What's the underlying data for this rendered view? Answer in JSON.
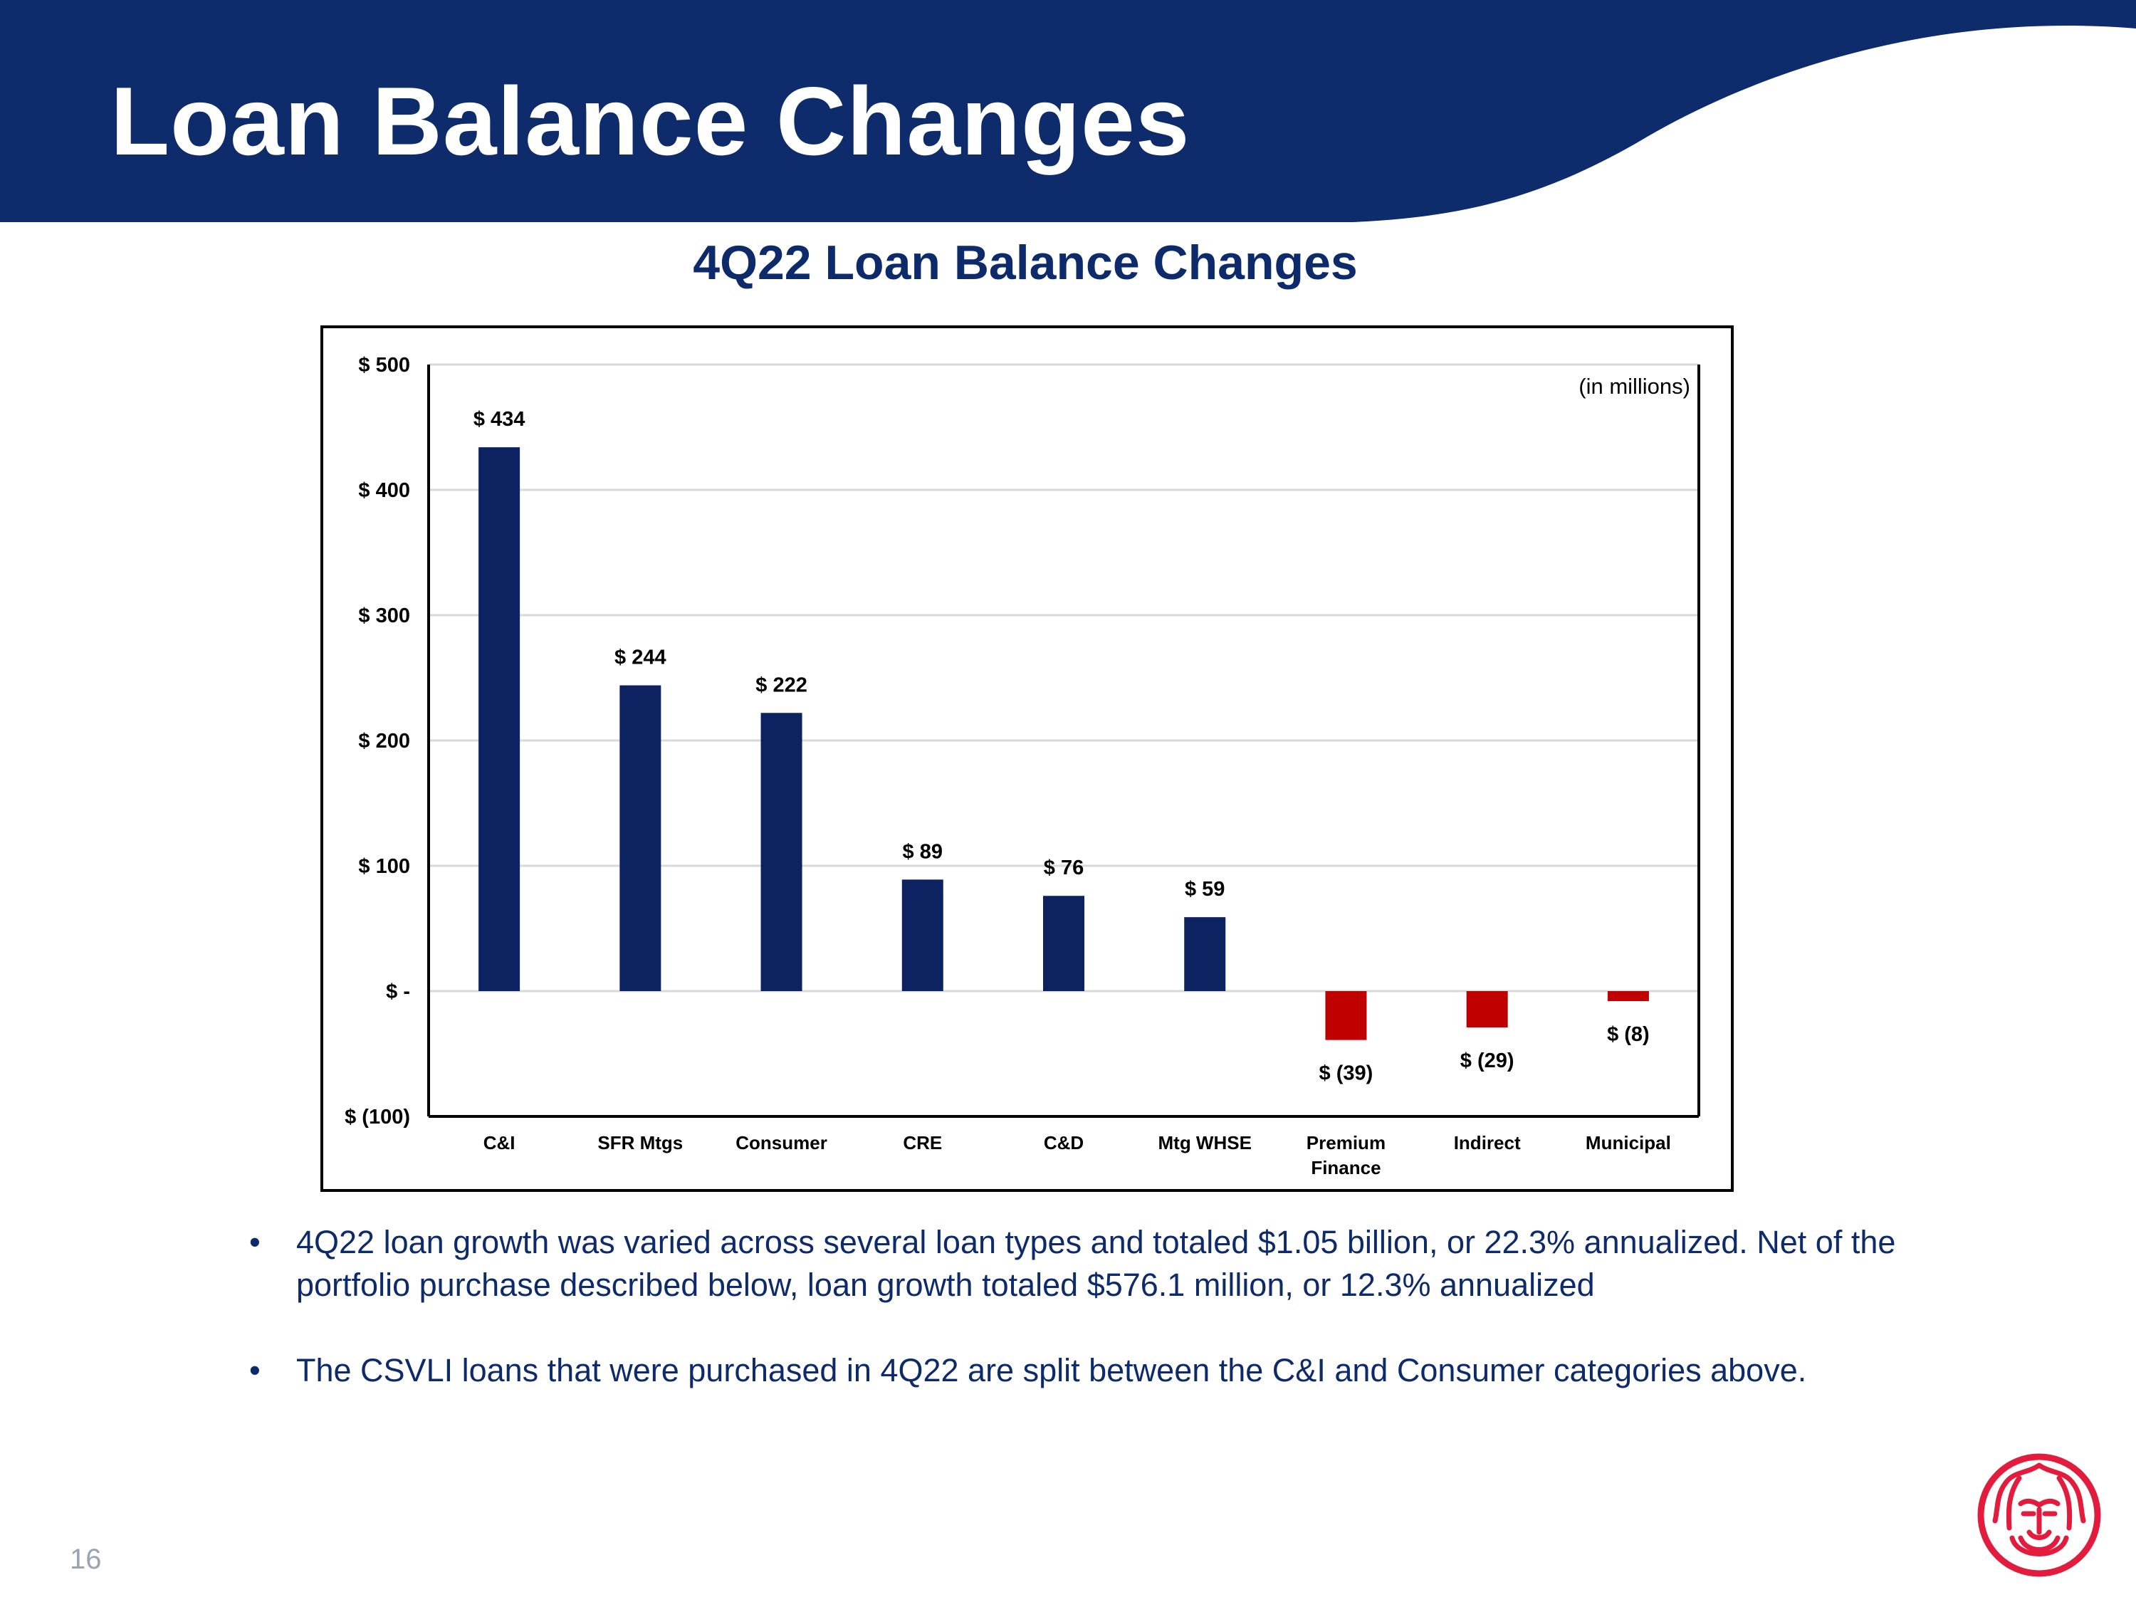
{
  "slide": {
    "title": "Loan Balance Changes",
    "page_number": "16",
    "colors": {
      "header_navy": "#0e2b6b",
      "positive_bar": "#0d2260",
      "negative_bar": "#c00000",
      "logo_red": "#e31b3c"
    },
    "icons": {
      "logo": "lion-head-logo-icon",
      "bullet": "bullet-dot-icon"
    }
  },
  "chart_data": {
    "type": "bar",
    "title": "4Q22 Loan Balance Changes",
    "unit_note": "(in millions)",
    "categories": [
      "C&I",
      "SFR Mtgs",
      "Consumer",
      "CRE",
      "C&D",
      "Mtg WHSE",
      "Premium Finance",
      "Indirect",
      "Municipal"
    ],
    "category_lines": [
      [
        "C&I"
      ],
      [
        "SFR Mtgs"
      ],
      [
        "Consumer"
      ],
      [
        "CRE"
      ],
      [
        "C&D"
      ],
      [
        "Mtg WHSE"
      ],
      [
        "Premium",
        "Finance"
      ],
      [
        "Indirect"
      ],
      [
        "Municipal"
      ]
    ],
    "values": [
      434,
      244,
      222,
      89,
      76,
      59,
      -39,
      -29,
      -8
    ],
    "data_labels": [
      "$ 434",
      "$ 244",
      "$ 222",
      "$ 89",
      "$ 76",
      "$ 59",
      "$ (39)",
      "$ (29)",
      "$ (8)"
    ],
    "ylim": [
      -100,
      500
    ],
    "yticks": [
      500,
      400,
      300,
      200,
      100,
      0,
      -100
    ],
    "ytick_labels": [
      "$ 500",
      "$ 400",
      "$ 300",
      "$ 200",
      "$ 100",
      "$ -",
      "$ (100)"
    ],
    "grid": true,
    "legend": "none"
  },
  "bullets": [
    "4Q22 loan growth was varied across several loan types and totaled $1.05 billion, or 22.3% annualized. Net of the portfolio purchase described below, loan growth totaled $576.1 million, or 12.3% annualized",
    "The CSVLI loans that were purchased in 4Q22 are split between the C&I and Consumer categories above."
  ]
}
